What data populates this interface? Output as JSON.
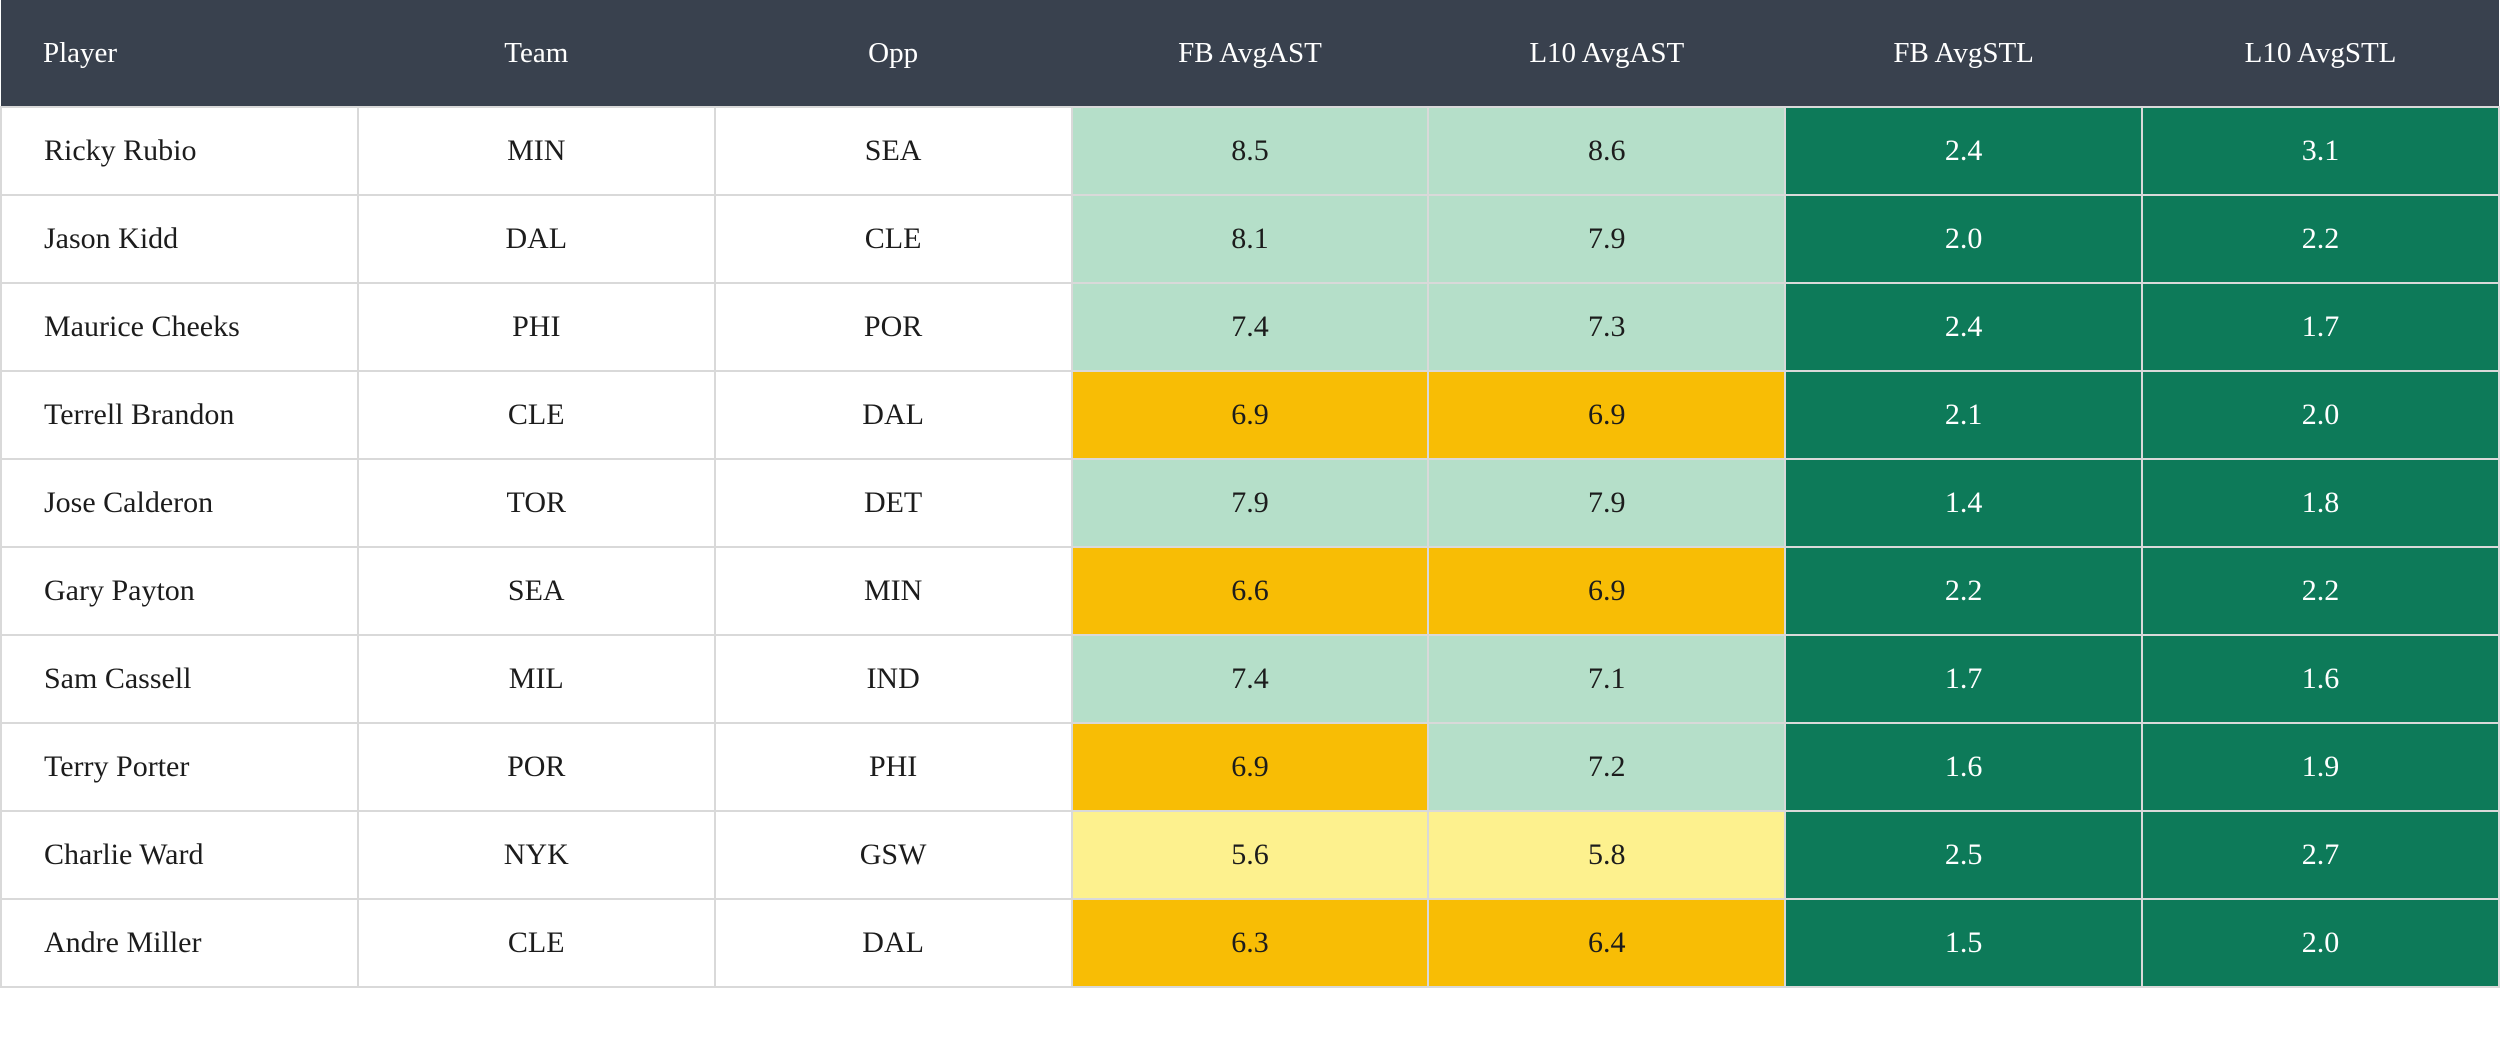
{
  "palette": {
    "header_bg": "#39414e",
    "header_text": "#ffffff",
    "row_bg": "#ffffff",
    "cell_text": "#1c1c1c",
    "border": "#d9d9d9",
    "green_light": "#b5dfc9",
    "green_dark": "#0d7a59",
    "amber": "#f8bd05",
    "yellow": "#fdf18e",
    "dark_cell_text": "#ffffff"
  },
  "table": {
    "columns": [
      {
        "key": "player",
        "label": "Player",
        "align": "left"
      },
      {
        "key": "team",
        "label": "Team",
        "align": "center"
      },
      {
        "key": "opp",
        "label": "Opp",
        "align": "center"
      },
      {
        "key": "fb_avg_ast",
        "label": "FB AvgAST",
        "align": "center"
      },
      {
        "key": "l10_avg_ast",
        "label": "L10 AvgAST",
        "align": "center"
      },
      {
        "key": "fb_avg_stl",
        "label": "FB AvgSTL",
        "align": "center"
      },
      {
        "key": "l10_avg_stl",
        "label": "L10 AvgSTL",
        "align": "center"
      }
    ],
    "rows": [
      {
        "player": "Ricky Rubio",
        "team": "MIN",
        "opp": "SEA",
        "fb_avg_ast": "8.5",
        "l10_avg_ast": "8.6",
        "fb_avg_stl": "2.4",
        "l10_avg_stl": "3.1",
        "cell_colors": {
          "fb_avg_ast": "green_light",
          "l10_avg_ast": "green_light",
          "fb_avg_stl": "green_dark",
          "l10_avg_stl": "green_dark"
        }
      },
      {
        "player": "Jason Kidd",
        "team": "DAL",
        "opp": "CLE",
        "fb_avg_ast": "8.1",
        "l10_avg_ast": "7.9",
        "fb_avg_stl": "2.0",
        "l10_avg_stl": "2.2",
        "cell_colors": {
          "fb_avg_ast": "green_light",
          "l10_avg_ast": "green_light",
          "fb_avg_stl": "green_dark",
          "l10_avg_stl": "green_dark"
        }
      },
      {
        "player": "Maurice Cheeks",
        "team": "PHI",
        "opp": "POR",
        "fb_avg_ast": "7.4",
        "l10_avg_ast": "7.3",
        "fb_avg_stl": "2.4",
        "l10_avg_stl": "1.7",
        "cell_colors": {
          "fb_avg_ast": "green_light",
          "l10_avg_ast": "green_light",
          "fb_avg_stl": "green_dark",
          "l10_avg_stl": "green_dark"
        }
      },
      {
        "player": "Terrell Brandon",
        "team": "CLE",
        "opp": "DAL",
        "fb_avg_ast": "6.9",
        "l10_avg_ast": "6.9",
        "fb_avg_stl": "2.1",
        "l10_avg_stl": "2.0",
        "cell_colors": {
          "fb_avg_ast": "amber",
          "l10_avg_ast": "amber",
          "fb_avg_stl": "green_dark",
          "l10_avg_stl": "green_dark"
        }
      },
      {
        "player": "Jose Calderon",
        "team": "TOR",
        "opp": "DET",
        "fb_avg_ast": "7.9",
        "l10_avg_ast": "7.9",
        "fb_avg_stl": "1.4",
        "l10_avg_stl": "1.8",
        "cell_colors": {
          "fb_avg_ast": "green_light",
          "l10_avg_ast": "green_light",
          "fb_avg_stl": "green_dark",
          "l10_avg_stl": "green_dark"
        }
      },
      {
        "player": "Gary Payton",
        "team": "SEA",
        "opp": "MIN",
        "fb_avg_ast": "6.6",
        "l10_avg_ast": "6.9",
        "fb_avg_stl": "2.2",
        "l10_avg_stl": "2.2",
        "cell_colors": {
          "fb_avg_ast": "amber",
          "l10_avg_ast": "amber",
          "fb_avg_stl": "green_dark",
          "l10_avg_stl": "green_dark"
        }
      },
      {
        "player": "Sam Cassell",
        "team": "MIL",
        "opp": "IND",
        "fb_avg_ast": "7.4",
        "l10_avg_ast": "7.1",
        "fb_avg_stl": "1.7",
        "l10_avg_stl": "1.6",
        "cell_colors": {
          "fb_avg_ast": "green_light",
          "l10_avg_ast": "green_light",
          "fb_avg_stl": "green_dark",
          "l10_avg_stl": "green_dark"
        }
      },
      {
        "player": "Terry Porter",
        "team": "POR",
        "opp": "PHI",
        "fb_avg_ast": "6.9",
        "l10_avg_ast": "7.2",
        "fb_avg_stl": "1.6",
        "l10_avg_stl": "1.9",
        "cell_colors": {
          "fb_avg_ast": "amber",
          "l10_avg_ast": "green_light",
          "fb_avg_stl": "green_dark",
          "l10_avg_stl": "green_dark"
        }
      },
      {
        "player": "Charlie Ward",
        "team": "NYK",
        "opp": "GSW",
        "fb_avg_ast": "5.6",
        "l10_avg_ast": "5.8",
        "fb_avg_stl": "2.5",
        "l10_avg_stl": "2.7",
        "cell_colors": {
          "fb_avg_ast": "yellow",
          "l10_avg_ast": "yellow",
          "fb_avg_stl": "green_dark",
          "l10_avg_stl": "green_dark"
        }
      },
      {
        "player": "Andre Miller",
        "team": "CLE",
        "opp": "DAL",
        "fb_avg_ast": "6.3",
        "l10_avg_ast": "6.4",
        "fb_avg_stl": "1.5",
        "l10_avg_stl": "2.0",
        "cell_colors": {
          "fb_avg_ast": "amber",
          "l10_avg_ast": "amber",
          "fb_avg_stl": "green_dark",
          "l10_avg_stl": "green_dark"
        }
      }
    ]
  }
}
